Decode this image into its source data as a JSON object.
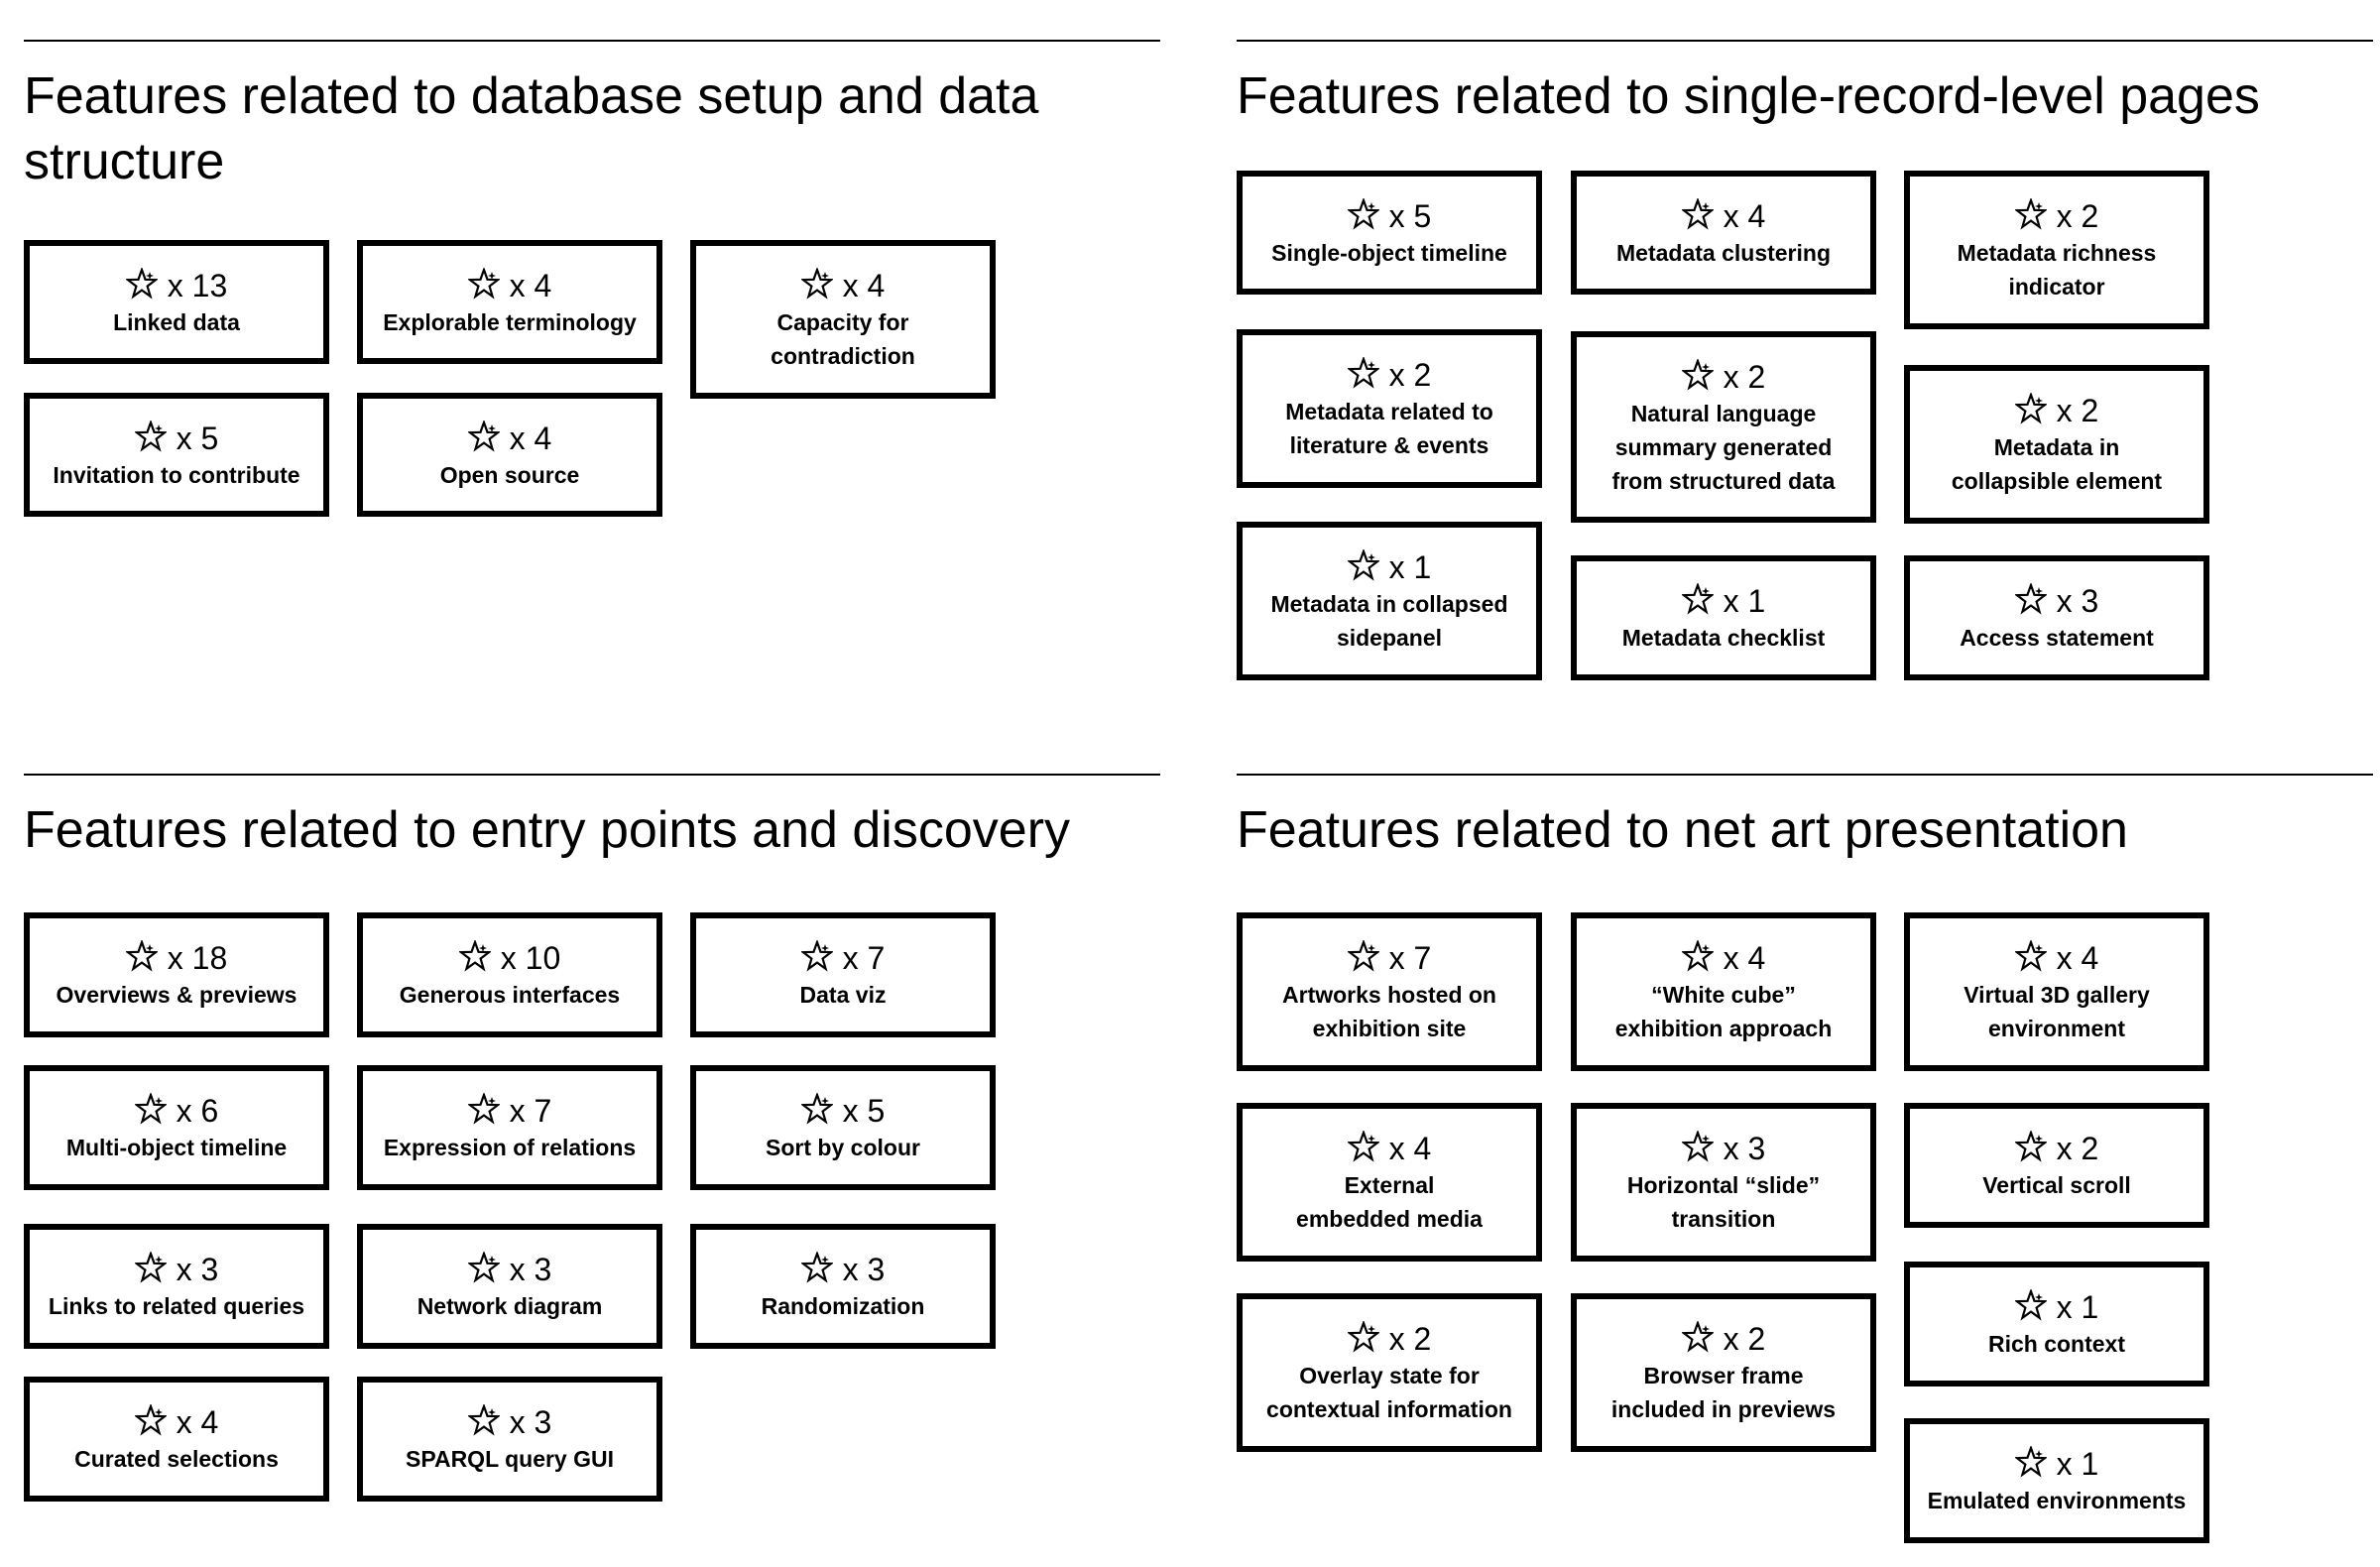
{
  "sections": [
    {
      "title": "Features related to database setup and data structure",
      "cards": [
        {
          "count": "x 13",
          "label": "Linked data"
        },
        {
          "count": "x 4",
          "label": "Explorable terminology"
        },
        {
          "count": "x 4",
          "label": "Capacity for contradiction"
        },
        {
          "count": "x 5",
          "label": "Invitation to contribute"
        },
        {
          "count": "x 4",
          "label": "Open source"
        }
      ]
    },
    {
      "title": "Features related to single-record-level pages",
      "cards": [
        {
          "count": "x 5",
          "label": "Single-object timeline"
        },
        {
          "count": "x 4",
          "label": "Metadata clustering"
        },
        {
          "count": "x 2",
          "label": "Metadata richness indicator"
        },
        {
          "count": "x 2",
          "label": "Metadata related to literature & events"
        },
        {
          "count": "x 2",
          "label": "Natural language summary generated from structured data"
        },
        {
          "count": "x 2",
          "label": "Metadata in collapsible element"
        },
        {
          "count": "x 1",
          "label": "Metadata in collapsed sidepanel"
        },
        {
          "count": "x 1",
          "label": "Metadata checklist"
        },
        {
          "count": "x 3",
          "label": "Access statement"
        }
      ]
    },
    {
      "title": "Features related to entry points and discovery",
      "cards": [
        {
          "count": "x 18",
          "label": "Overviews & previews"
        },
        {
          "count": "x 10",
          "label": "Generous interfaces"
        },
        {
          "count": "x 7",
          "label": "Data viz"
        },
        {
          "count": "x 6",
          "label": "Multi-object timeline"
        },
        {
          "count": "x 7",
          "label": "Expression of relations"
        },
        {
          "count": "x 5",
          "label": "Sort by colour"
        },
        {
          "count": "x 3",
          "label": "Links to related queries"
        },
        {
          "count": "x 3",
          "label": "Network diagram"
        },
        {
          "count": "x 3",
          "label": "Randomization"
        },
        {
          "count": "x 4",
          "label": "Curated selections"
        },
        {
          "count": "x 3",
          "label": "SPARQL query GUI"
        }
      ]
    },
    {
      "title": "Features related to net art presentation",
      "cards": [
        {
          "count": "x 7",
          "label": "Artworks hosted on exhibition site"
        },
        {
          "count": "x 4",
          "label": "“White cube” exhibition approach"
        },
        {
          "count": "x 4",
          "label": "Virtual 3D gallery environment"
        },
        {
          "count": "x 4",
          "label": "External embedded media"
        },
        {
          "count": "x 3",
          "label": "Horizontal “slide” transition"
        },
        {
          "count": "x 2",
          "label": "Vertical scroll"
        },
        {
          "count": "x 2",
          "label": "Overlay state for contextual information"
        },
        {
          "count": "x 2",
          "label": "Browser frame included in previews"
        },
        {
          "count": "x 1",
          "label": "Rich context"
        },
        {
          "count": "x 1",
          "label": "Emulated environments"
        }
      ]
    }
  ]
}
